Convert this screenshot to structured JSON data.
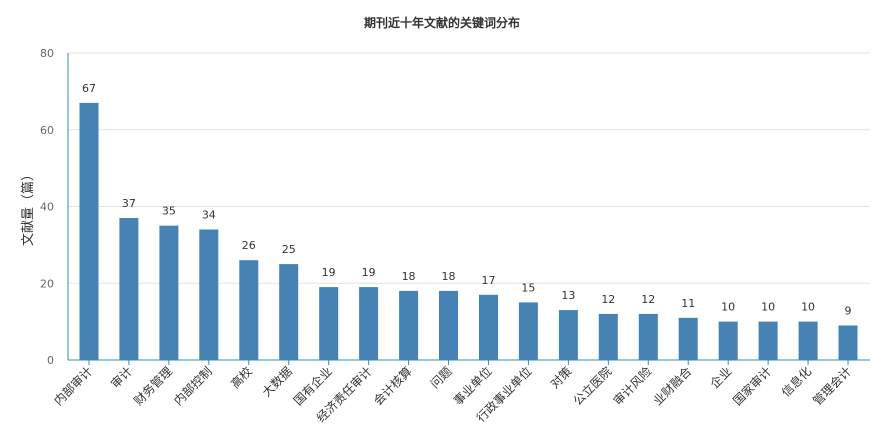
{
  "chart_data": {
    "type": "bar",
    "title": "期刊近十年文献的关键词分布",
    "xlabel": "",
    "ylabel": "文献量（篇）",
    "ylim": [
      0,
      80
    ],
    "yticks": [
      0,
      20,
      40,
      60,
      80
    ],
    "grid": true,
    "bar_color": "#4682b4",
    "categories": [
      "内部审计",
      "审计",
      "财务管理",
      "内部控制",
      "高校",
      "大数据",
      "国有企业",
      "经济责任审计",
      "会计核算",
      "问题",
      "事业单位",
      "行政事业单位",
      "对策",
      "公立医院",
      "审计风险",
      "业财融合",
      "企业",
      "国家审计",
      "信息化",
      "管理会计"
    ],
    "values": [
      67,
      37,
      35,
      34,
      26,
      25,
      19,
      19,
      18,
      18,
      17,
      15,
      13,
      12,
      12,
      11,
      10,
      10,
      10,
      9
    ]
  }
}
